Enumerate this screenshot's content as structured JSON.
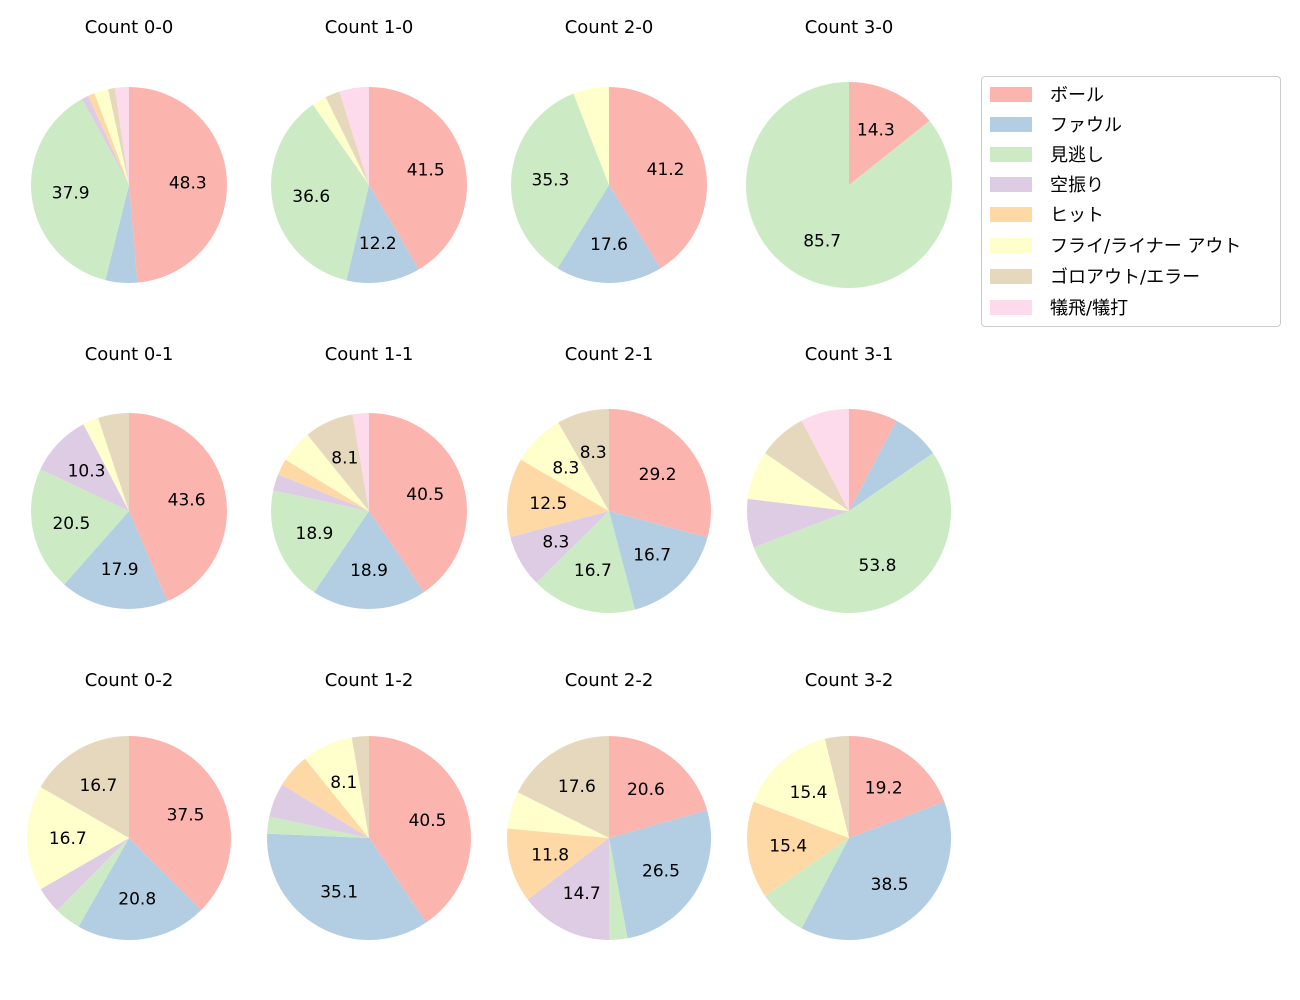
{
  "chart_data": {
    "type": "pie",
    "categories": [
      "ボール",
      "ファウル",
      "見逃し",
      "空振り",
      "ヒット",
      "フライ/ライナー アウト",
      "ゴロアウト/エラー",
      "犠飛/犠打"
    ],
    "colors": [
      "#fbb4ae",
      "#b3cde3",
      "#ccebc5",
      "#decbe4",
      "#fed9a6",
      "#ffffcc",
      "#e5d8bd",
      "#fddaec"
    ],
    "legend_position": "right",
    "label_threshold": 8,
    "charts": [
      {
        "title": "Count 0-0",
        "values": [
          48.3,
          5.2,
          37.9,
          1.1,
          1.1,
          2.3,
          1.1,
          2.3
        ],
        "labels": [
          "48.3",
          "",
          "37.9",
          "",
          "",
          "",
          "",
          ""
        ]
      },
      {
        "title": "Count 1-0",
        "values": [
          41.5,
          12.2,
          36.6,
          0,
          0,
          2.4,
          2.4,
          4.9
        ],
        "labels": [
          "41.5",
          "12.2",
          "36.6",
          "",
          "",
          "",
          "",
          ""
        ]
      },
      {
        "title": "Count 2-0",
        "values": [
          41.2,
          17.6,
          35.3,
          0,
          0,
          5.9,
          0,
          0
        ],
        "labels": [
          "41.2",
          "17.6",
          "35.3",
          "",
          "",
          "",
          "",
          ""
        ]
      },
      {
        "title": "Count 3-0",
        "values": [
          14.3,
          0,
          85.7,
          0,
          0,
          0,
          0,
          0
        ],
        "labels": [
          "14.3",
          "",
          "85.7",
          "",
          "",
          "",
          "",
          ""
        ]
      },
      {
        "title": "Count 0-1",
        "values": [
          43.6,
          17.9,
          20.5,
          10.3,
          0,
          2.6,
          5.1,
          0
        ],
        "labels": [
          "43.6",
          "17.9",
          "20.5",
          "10.3",
          "",
          "",
          "",
          ""
        ]
      },
      {
        "title": "Count 1-1",
        "values": [
          40.5,
          18.9,
          18.9,
          2.7,
          2.7,
          5.4,
          8.1,
          2.7
        ],
        "labels": [
          "40.5",
          "18.9",
          "18.9",
          "",
          "",
          "",
          "8.1",
          ""
        ]
      },
      {
        "title": "Count 2-1",
        "values": [
          29.2,
          16.7,
          16.7,
          8.3,
          12.5,
          8.3,
          8.3,
          0
        ],
        "labels": [
          "29.2",
          "16.7",
          "16.7",
          "8.3",
          "12.5",
          "8.3",
          "8.3",
          ""
        ]
      },
      {
        "title": "Count 3-1",
        "values": [
          7.7,
          7.7,
          53.8,
          7.7,
          0,
          7.7,
          7.7,
          7.7
        ],
        "labels": [
          "",
          "",
          "53.8",
          "",
          "",
          "",
          "",
          ""
        ]
      },
      {
        "title": "Count 0-2",
        "values": [
          37.5,
          20.8,
          4.2,
          4.2,
          0,
          16.7,
          16.7,
          0
        ],
        "labels": [
          "37.5",
          "20.8",
          "",
          "",
          "",
          "16.7",
          "16.7",
          ""
        ]
      },
      {
        "title": "Count 1-2",
        "values": [
          40.5,
          35.1,
          2.7,
          5.4,
          5.4,
          8.1,
          2.7,
          0
        ],
        "labels": [
          "40.5",
          "35.1",
          "",
          "",
          "",
          "8.1",
          "",
          ""
        ]
      },
      {
        "title": "Count 2-2",
        "values": [
          20.6,
          26.5,
          2.9,
          14.7,
          11.8,
          5.9,
          17.6,
          0
        ],
        "labels": [
          "20.6",
          "26.5",
          "",
          "14.7",
          "11.8",
          "",
          "17.6",
          ""
        ]
      },
      {
        "title": "Count 3-2",
        "values": [
          19.2,
          38.5,
          7.7,
          0,
          15.4,
          15.4,
          3.8,
          0
        ],
        "labels": [
          "19.2",
          "38.5",
          "",
          "",
          "15.4",
          "15.4",
          "",
          ""
        ]
      }
    ]
  },
  "legend": {
    "items": [
      {
        "label": "ボール",
        "color": "#fbb4ae"
      },
      {
        "label": "ファウル",
        "color": "#b3cde3"
      },
      {
        "label": "見逃し",
        "color": "#ccebc5"
      },
      {
        "label": "空振り",
        "color": "#decbe4"
      },
      {
        "label": "ヒット",
        "color": "#fed9a6"
      },
      {
        "label": "フライ/ライナー アウト",
        "color": "#ffffcc"
      },
      {
        "label": "ゴロアウト/エラー",
        "color": "#e5d8bd"
      },
      {
        "label": "犠飛/犠打",
        "color": "#fddaec"
      }
    ]
  }
}
